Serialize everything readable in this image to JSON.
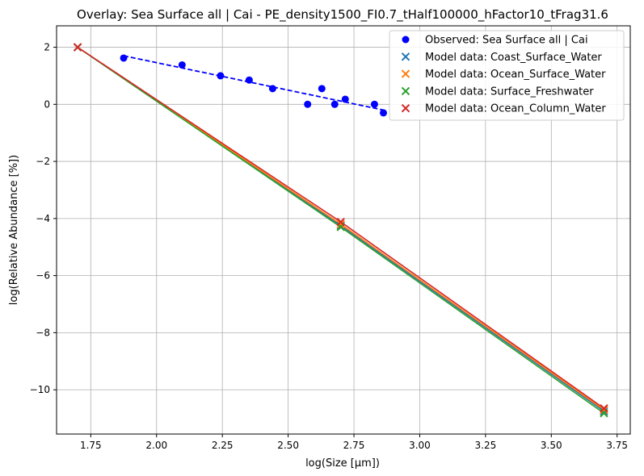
{
  "chart_data": {
    "type": "scatter",
    "title": "Overlay: Sea Surface all | Cai - PE_density1500_FI0.7_tHalf100000_hFactor10_tFrag31.6",
    "xlabel": "log(Size [μm])",
    "ylabel": "log(Relative Abundance [%])",
    "xlim": [
      1.62,
      3.8
    ],
    "ylim": [
      -11.55,
      2.75
    ],
    "xticks": [
      1.75,
      2.0,
      2.25,
      2.5,
      2.75,
      3.0,
      3.25,
      3.5,
      3.75
    ],
    "xtick_labels": [
      "1.75",
      "2.00",
      "2.25",
      "2.50",
      "2.75",
      "3.00",
      "3.25",
      "3.50",
      "3.75"
    ],
    "yticks": [
      -10,
      -8,
      -6,
      -4,
      -2,
      0,
      2
    ],
    "ytick_labels": [
      "−10",
      "−8",
      "−6",
      "−4",
      "−2",
      "0",
      "2"
    ],
    "grid": true,
    "legend_position": "top-right",
    "observed": {
      "name": "Observed: Sea Surface all | Cai",
      "color": "#0000ff",
      "x": [
        1.875,
        2.097,
        2.243,
        2.352,
        2.441,
        2.574,
        2.628,
        2.677,
        2.717,
        2.828,
        2.862
      ],
      "y": [
        1.62,
        1.38,
        1.0,
        0.85,
        0.55,
        0.0,
        0.55,
        0.0,
        0.18,
        0.0,
        -0.3
      ]
    },
    "observed_fit": {
      "color": "#0000ff",
      "x": [
        1.875,
        2.862
      ],
      "y": [
        1.7,
        -0.2
      ]
    },
    "series": [
      {
        "name": "Model data: Coast_Surface_Water",
        "color": "#1f77b4",
        "x": [
          1.7,
          2.7,
          3.7
        ],
        "y": [
          2.0,
          -4.25,
          -10.75
        ]
      },
      {
        "name": "Model data: Ocean_Surface_Water",
        "color": "#ff7f0e",
        "x": [
          1.7,
          2.7,
          3.7
        ],
        "y": [
          2.0,
          -4.2,
          -10.7
        ]
      },
      {
        "name": "Model data: Surface_Freshwater",
        "color": "#2ca02c",
        "x": [
          1.7,
          2.7,
          3.7
        ],
        "y": [
          2.0,
          -4.3,
          -10.82
        ]
      },
      {
        "name": "Model data: Ocean_Column_Water",
        "color": "#d62728",
        "x": [
          1.7,
          2.7,
          3.7
        ],
        "y": [
          2.0,
          -4.12,
          -10.65
        ]
      }
    ]
  }
}
